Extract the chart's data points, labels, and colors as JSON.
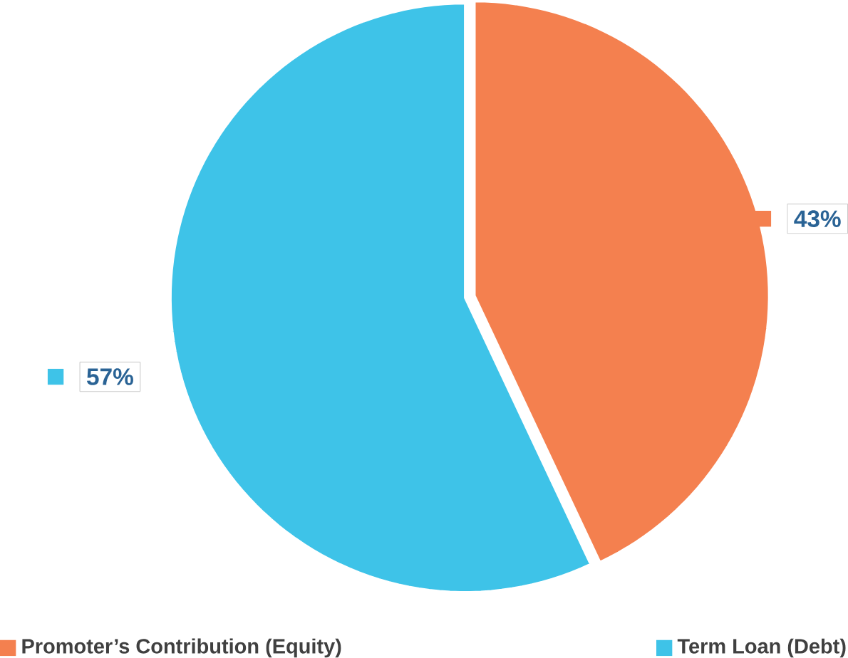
{
  "chart_data": {
    "type": "pie",
    "categories": [
      "Promoter’s Contribution (Equity)",
      "Term Loan (Debt)"
    ],
    "values": [
      43,
      57
    ],
    "colors": [
      "#f4804f",
      "#3ec3e8"
    ],
    "value_labels": [
      "43%",
      "57%"
    ],
    "legend": "bottom"
  }
}
